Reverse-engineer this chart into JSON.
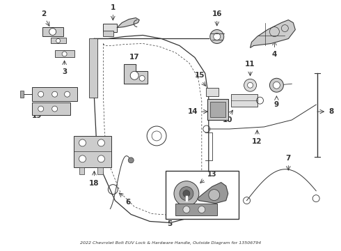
{
  "title": "2022 Chevrolet Bolt EUV Lock & Hardware Handle, Outside Diagram for 13506794",
  "bg_color": "#ffffff",
  "fig_width": 4.9,
  "fig_height": 3.6,
  "dpi": 100,
  "label_color": "#111111",
  "line_color": "#333333"
}
